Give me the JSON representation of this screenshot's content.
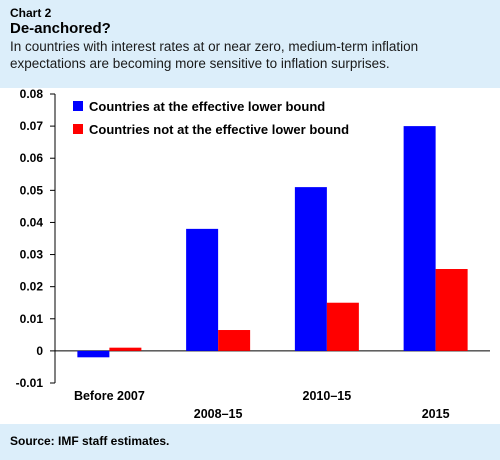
{
  "header": {
    "label": "Chart 2",
    "title": "De-anchored?",
    "subtitle": "In countries with interest rates at or near zero, medium-term inflation expectations are becoming more sensitive to inflation surprises."
  },
  "source": "Source: IMF staff estimates.",
  "colors": {
    "background": "#dceefa",
    "series_elb": "#0000ff",
    "series_not_elb": "#ff0000"
  },
  "chart_data": {
    "type": "bar",
    "categories": [
      "Before 2007",
      "2008–15",
      "2010–15",
      "2015"
    ],
    "series": [
      {
        "name": "Countries at the effective lower bound",
        "values": [
          -0.002,
          0.038,
          0.051,
          0.07
        ],
        "color": "#0000ff"
      },
      {
        "name": "Countries not at the effective lower bound",
        "values": [
          0.001,
          0.0065,
          0.015,
          0.0255
        ],
        "color": "#ff0000"
      }
    ],
    "ylim": [
      -0.01,
      0.08
    ],
    "yticks": [
      "-0.01",
      "0",
      "0.01",
      "0.02",
      "0.03",
      "0.04",
      "0.05",
      "0.06",
      "0.07",
      "0.08"
    ],
    "legend_position": "top-left",
    "grid": false,
    "xlabel": "",
    "ylabel": ""
  }
}
